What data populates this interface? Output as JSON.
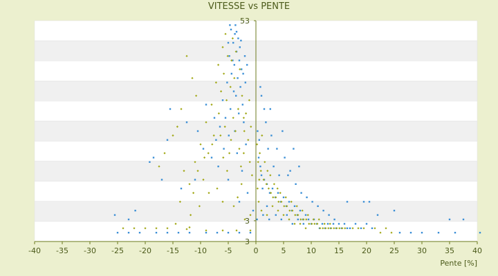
{
  "chart_data": {
    "type": "scatter",
    "title": "VITESSE vs PENTE",
    "xlabel": "Pente [%]",
    "ylabel": "",
    "xlim": [
      -40,
      40
    ],
    "ylim": [
      3,
      53
    ],
    "x_ticks": [
      "-40",
      "-35",
      "-30",
      "-25",
      "-20",
      "-15",
      "-10",
      "-5",
      "0",
      "5",
      "10",
      "15",
      "20",
      "25",
      "30",
      "35",
      "40"
    ],
    "y_tick_labels": [
      "53",
      "3",
      "3"
    ],
    "grid": true,
    "legend": "none",
    "colors": {
      "background": "#ecf0cf",
      "plot_band_light": "#ffffff",
      "plot_band_dark": "#f0f0f0",
      "axis": "#6b7a1e",
      "series_blue": "#3b8fd6",
      "series_olive": "#a2a817"
    },
    "series": [
      {
        "color": "#3b8fd6",
        "points": [
          [
            -4.5,
            51
          ],
          [
            -3.8,
            50
          ],
          [
            -3.2,
            49
          ],
          [
            -4.1,
            48
          ],
          [
            -2.9,
            47
          ],
          [
            -3.5,
            46
          ],
          [
            -4.8,
            45
          ],
          [
            -3.0,
            44
          ],
          [
            -3.9,
            43
          ],
          [
            -2.6,
            42
          ],
          [
            -4.4,
            41
          ],
          [
            -3.3,
            40
          ],
          [
            -5.2,
            39
          ],
          [
            -2.8,
            38
          ],
          [
            -4.0,
            37
          ],
          [
            -3.6,
            36
          ],
          [
            -6.0,
            35
          ],
          [
            -2.4,
            34
          ],
          [
            -4.6,
            33
          ],
          [
            -3.1,
            32
          ],
          [
            -5.5,
            31
          ],
          [
            -2.2,
            30
          ],
          [
            -6.5,
            29
          ],
          [
            -3.8,
            28
          ],
          [
            -4.9,
            27
          ],
          [
            -7.2,
            26
          ],
          [
            -1.8,
            25
          ],
          [
            -5.8,
            24
          ],
          [
            -3.4,
            23
          ],
          [
            -8.0,
            22
          ],
          [
            -15.5,
            33
          ],
          [
            -12.5,
            30
          ],
          [
            -9.0,
            34
          ],
          [
            -10.5,
            28
          ],
          [
            -16.0,
            26
          ],
          [
            -18.5,
            22
          ],
          [
            -19.2,
            21
          ],
          [
            -17.0,
            17
          ],
          [
            -13.5,
            15
          ],
          [
            -11.0,
            17
          ],
          [
            -25.5,
            9
          ],
          [
            -21.8,
            10
          ],
          [
            -23.0,
            8
          ],
          [
            -9.5,
            24
          ],
          [
            -7.5,
            31
          ],
          [
            -6.8,
            20
          ],
          [
            -1.5,
            14
          ],
          [
            -2.5,
            19
          ],
          [
            -5.0,
            17
          ],
          [
            -3.0,
            12
          ],
          [
            -25,
            5
          ],
          [
            -23,
            5
          ],
          [
            -21,
            5
          ],
          [
            -18,
            5
          ],
          [
            -16,
            5
          ],
          [
            -14,
            5
          ],
          [
            -12,
            5
          ],
          [
            -9,
            5
          ],
          [
            -7,
            5
          ],
          [
            -5,
            5
          ],
          [
            -3,
            5
          ],
          [
            -1,
            5
          ],
          [
            0.5,
            22
          ],
          [
            0.8,
            20
          ],
          [
            1.0,
            18
          ],
          [
            1.5,
            17
          ],
          [
            1.2,
            15
          ],
          [
            2.0,
            16
          ],
          [
            2.5,
            14
          ],
          [
            3.0,
            15
          ],
          [
            3.5,
            13
          ],
          [
            4.0,
            14
          ],
          [
            4.5,
            12
          ],
          [
            5.0,
            13
          ],
          [
            5.5,
            11
          ],
          [
            6.0,
            12
          ],
          [
            6.5,
            10
          ],
          [
            7.0,
            11
          ],
          [
            7.5,
            9
          ],
          [
            8.0,
            10
          ],
          [
            8.5,
            8
          ],
          [
            9.0,
            9
          ],
          [
            9.5,
            8
          ],
          [
            10.0,
            7
          ],
          [
            10.5,
            8
          ],
          [
            11.0,
            7
          ],
          [
            11.5,
            6
          ],
          [
            12.0,
            7
          ],
          [
            12.5,
            6
          ],
          [
            13.0,
            7
          ],
          [
            13.5,
            6
          ],
          [
            14.0,
            7
          ],
          [
            14.5,
            6
          ],
          [
            15.0,
            7
          ],
          [
            15.5,
            6
          ],
          [
            16.0,
            7
          ],
          [
            16.5,
            6
          ],
          [
            17.0,
            6
          ],
          [
            18.0,
            7
          ],
          [
            19.0,
            6
          ],
          [
            20.0,
            7
          ],
          [
            21.0,
            6
          ],
          [
            0.3,
            28
          ],
          [
            0.6,
            26
          ],
          [
            1.8,
            30
          ],
          [
            2.2,
            24
          ],
          [
            3.2,
            20
          ],
          [
            2.8,
            27
          ],
          [
            4.2,
            18
          ],
          [
            5.2,
            22
          ],
          [
            6.2,
            19
          ],
          [
            7.2,
            16
          ],
          [
            8.2,
            14
          ],
          [
            9.2,
            13
          ],
          [
            10.2,
            12
          ],
          [
            11.2,
            11
          ],
          [
            12.2,
            10
          ],
          [
            13.2,
            9
          ],
          [
            14.2,
            8
          ],
          [
            16.5,
            12
          ],
          [
            19.5,
            12
          ],
          [
            20.5,
            12
          ],
          [
            22.0,
            9
          ],
          [
            25.0,
            10
          ],
          [
            28.0,
            5
          ],
          [
            30.0,
            5
          ],
          [
            33.0,
            5
          ],
          [
            35.0,
            8
          ],
          [
            36.0,
            5
          ],
          [
            37.5,
            8
          ],
          [
            40.5,
            5
          ],
          [
            26.0,
            5
          ],
          [
            1.0,
            36
          ],
          [
            1.5,
            33
          ],
          [
            0.8,
            38
          ],
          [
            2.6,
            33
          ],
          [
            4.8,
            28
          ],
          [
            6.8,
            24
          ],
          [
            3.8,
            24
          ],
          [
            5.8,
            18
          ],
          [
            7.8,
            20
          ],
          [
            2.0,
            11
          ],
          [
            -0.5,
            10
          ],
          [
            0.2,
            8
          ],
          [
            1.3,
            9
          ],
          [
            2.4,
            8
          ],
          [
            3.6,
            9
          ],
          [
            4.6,
            8
          ],
          [
            5.6,
            9
          ],
          [
            6.6,
            7
          ],
          [
            7.6,
            8
          ],
          [
            8.6,
            7
          ],
          [
            -2.0,
            45
          ],
          [
            -1.6,
            43
          ],
          [
            -2.3,
            41
          ],
          [
            -1.9,
            39
          ],
          [
            -4.2,
            44
          ],
          [
            -5.0,
            48
          ],
          [
            -4.7,
            52
          ],
          [
            -3.7,
            52
          ],
          [
            -3.5,
            50.5
          ],
          [
            -2.7,
            48.5
          ]
        ]
      },
      {
        "color": "#a2a817",
        "points": [
          [
            -5.5,
            50
          ],
          [
            -4.2,
            49
          ],
          [
            -6.0,
            47
          ],
          [
            -3.6,
            46
          ],
          [
            -5.1,
            45
          ],
          [
            -4.4,
            44
          ],
          [
            -6.8,
            43
          ],
          [
            -2.9,
            42
          ],
          [
            -5.8,
            41
          ],
          [
            -3.9,
            40
          ],
          [
            -7.2,
            39
          ],
          [
            -4.6,
            38
          ],
          [
            -6.3,
            37
          ],
          [
            -2.5,
            36
          ],
          [
            -5.3,
            35
          ],
          [
            -8.0,
            34
          ],
          [
            -3.2,
            33
          ],
          [
            -6.7,
            32
          ],
          [
            -4.1,
            31
          ],
          [
            -9.0,
            30
          ],
          [
            -5.6,
            29
          ],
          [
            -2.1,
            28
          ],
          [
            -7.6,
            27
          ],
          [
            -4.5,
            26
          ],
          [
            -10.0,
            25
          ],
          [
            -3.0,
            24
          ],
          [
            -8.6,
            23
          ],
          [
            -5.9,
            22
          ],
          [
            -11.0,
            21
          ],
          [
            -2.7,
            20
          ],
          [
            -12.5,
            45
          ],
          [
            -11.5,
            40
          ],
          [
            -10.8,
            36
          ],
          [
            -13.5,
            33
          ],
          [
            -14.2,
            29
          ],
          [
            -15.0,
            27
          ],
          [
            -16.5,
            23
          ],
          [
            -17.5,
            20
          ],
          [
            -13.0,
            19
          ],
          [
            -12.0,
            16
          ],
          [
            -9.5,
            17
          ],
          [
            -8.5,
            14
          ],
          [
            -7.0,
            15
          ],
          [
            -6.0,
            12
          ],
          [
            -10.2,
            11
          ],
          [
            -11.8,
            9
          ],
          [
            -14.5,
            7
          ],
          [
            -16.0,
            6
          ],
          [
            -18.0,
            6
          ],
          [
            -20.0,
            6
          ],
          [
            -22.0,
            6
          ],
          [
            -24.0,
            6
          ],
          [
            -12.5,
            5.8
          ],
          [
            -12.0,
            6.2
          ],
          [
            -9.0,
            5.5
          ],
          [
            -6.0,
            5.5
          ],
          [
            -3.5,
            5.5
          ],
          [
            -1.0,
            5.5
          ],
          [
            -2.0,
            8
          ],
          [
            -1.0,
            9
          ],
          [
            0.4,
            21
          ],
          [
            0.9,
            19
          ],
          [
            1.4,
            17
          ],
          [
            1.9,
            16
          ],
          [
            2.3,
            15
          ],
          [
            2.7,
            14
          ],
          [
            3.1,
            13
          ],
          [
            3.6,
            13
          ],
          [
            4.1,
            12
          ],
          [
            4.6,
            12
          ],
          [
            5.1,
            11
          ],
          [
            5.6,
            11
          ],
          [
            6.1,
            10
          ],
          [
            6.6,
            10
          ],
          [
            7.1,
            9
          ],
          [
            7.6,
            9
          ],
          [
            8.1,
            8
          ],
          [
            8.6,
            8
          ],
          [
            9.1,
            8
          ],
          [
            9.6,
            7
          ],
          [
            10.1,
            7
          ],
          [
            10.6,
            7
          ],
          [
            11.1,
            7
          ],
          [
            11.6,
            6
          ],
          [
            12.1,
            6
          ],
          [
            12.6,
            6
          ],
          [
            13.1,
            6
          ],
          [
            13.6,
            6
          ],
          [
            14.1,
            6
          ],
          [
            14.6,
            6
          ],
          [
            15.1,
            6
          ],
          [
            15.6,
            6
          ],
          [
            16.1,
            6
          ],
          [
            17.5,
            6
          ],
          [
            18.5,
            6
          ],
          [
            19.5,
            6
          ],
          [
            21.5,
            6
          ],
          [
            22.5,
            5
          ],
          [
            24.5,
            5
          ],
          [
            23.5,
            6
          ],
          [
            0.2,
            25
          ],
          [
            0.7,
            23
          ],
          [
            1.1,
            27
          ],
          [
            1.6,
            21
          ],
          [
            2.1,
            19
          ],
          [
            2.6,
            18
          ],
          [
            3.3,
            16
          ],
          [
            3.9,
            15
          ],
          [
            4.4,
            14
          ],
          [
            5.4,
            13
          ],
          [
            6.4,
            12
          ],
          [
            7.4,
            11
          ],
          [
            8.4,
            10
          ],
          [
            9.4,
            9
          ],
          [
            10.4,
            8
          ],
          [
            11.4,
            8
          ],
          [
            12.4,
            7
          ],
          [
            13.4,
            7
          ],
          [
            3.0,
            11
          ],
          [
            4.0,
            10
          ],
          [
            5.0,
            9
          ],
          [
            6.0,
            8
          ],
          [
            7.0,
            7
          ],
          [
            8.0,
            7
          ],
          [
            9.0,
            6
          ],
          [
            2.0,
            9
          ],
          [
            1.0,
            10
          ],
          [
            0.5,
            12
          ],
          [
            0.3,
            15
          ],
          [
            0.6,
            17
          ],
          [
            -1.2,
            35
          ],
          [
            -1.8,
            32
          ],
          [
            -0.9,
            29
          ],
          [
            -1.4,
            26
          ],
          [
            -2.2,
            23
          ],
          [
            -1.1,
            21
          ],
          [
            -0.7,
            18
          ],
          [
            -2.6,
            16
          ],
          [
            -3.3,
            13
          ],
          [
            -4.0,
            11
          ],
          [
            -6.4,
            27
          ],
          [
            -7.9,
            25
          ],
          [
            -9.3,
            22
          ],
          [
            -10.5,
            19
          ],
          [
            -11.3,
            14
          ],
          [
            -13.7,
            12
          ],
          [
            -5.2,
            19
          ],
          [
            -4.8,
            23
          ],
          [
            -3.7,
            28
          ],
          [
            -2.2,
            31
          ]
        ]
      }
    ]
  }
}
